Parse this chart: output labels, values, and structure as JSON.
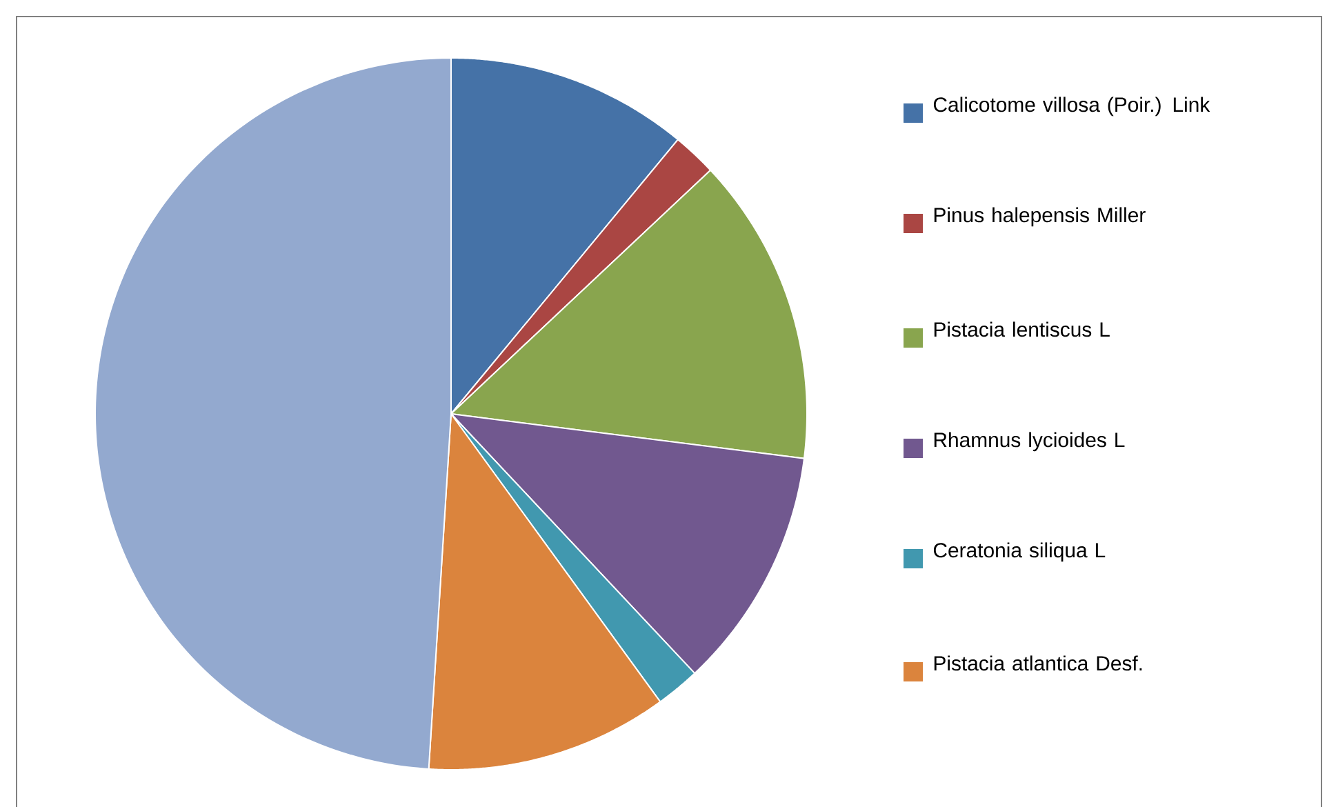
{
  "chart_data": {
    "type": "pie",
    "categories": [
      "Calicotome villosa (Poir.) Link",
      "Pinus halepensis Miller",
      "Pistacia lentiscus L",
      "Rhamnus lycioides L",
      "Ceratonia siliqua L",
      "Pistacia atlantica Desf.",
      null
    ],
    "values": [
      11,
      2,
      14,
      11,
      2,
      11,
      49
    ],
    "colors": [
      "#4572a7",
      "#aa4643",
      "#89a54e",
      "#71588f",
      "#4198af",
      "#db843d",
      "#93a9cf"
    ],
    "legend": "right"
  }
}
